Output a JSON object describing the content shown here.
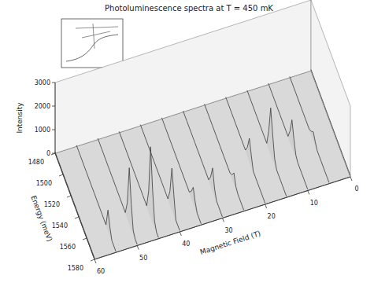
{
  "chart_data": {
    "type": "surface",
    "title": "Photoluminescence spectra at T = 450 mK",
    "xlabel": "Energy (meV)",
    "ylabel": "Magnetic Field (T)",
    "zlabel": "Intensity",
    "x": [
      1480,
      1485,
      1490,
      1495,
      1500,
      1505,
      1510,
      1515,
      1520,
      1525,
      1530,
      1535,
      1540,
      1545,
      1550,
      1555,
      1560,
      1565,
      1570,
      1575,
      1580
    ],
    "y": [
      0,
      5,
      10,
      15,
      20,
      25,
      30,
      35,
      40,
      45,
      50,
      55,
      60
    ],
    "z": [
      [
        50,
        50,
        50,
        50,
        50,
        50,
        50,
        50,
        50,
        50,
        50,
        50,
        50,
        50,
        50,
        50,
        50,
        50,
        50,
        50,
        50
      ],
      [
        50,
        50,
        50,
        50,
        50,
        50,
        50,
        50,
        50,
        50,
        50,
        200,
        400,
        200,
        50,
        50,
        50,
        50,
        50,
        50,
        50
      ],
      [
        50,
        50,
        50,
        50,
        50,
        50,
        50,
        50,
        50,
        50,
        50,
        500,
        1200,
        600,
        150,
        50,
        50,
        50,
        50,
        50,
        50
      ],
      [
        50,
        50,
        50,
        50,
        50,
        50,
        50,
        50,
        50,
        50,
        50,
        800,
        2000,
        1100,
        300,
        50,
        50,
        50,
        50,
        50,
        50
      ],
      [
        50,
        50,
        50,
        50,
        50,
        50,
        50,
        50,
        50,
        50,
        50,
        400,
        1000,
        500,
        50,
        50,
        50,
        50,
        50,
        50,
        50
      ],
      [
        50,
        50,
        50,
        50,
        50,
        50,
        50,
        50,
        50,
        50,
        50,
        50,
        50,
        50,
        200,
        500,
        150,
        50,
        50,
        50,
        50
      ],
      [
        50,
        50,
        50,
        50,
        50,
        50,
        50,
        50,
        50,
        50,
        50,
        50,
        50,
        50,
        400,
        1000,
        350,
        50,
        50,
        50,
        50
      ],
      [
        50,
        50,
        50,
        50,
        50,
        50,
        50,
        50,
        50,
        50,
        50,
        50,
        50,
        50,
        50,
        300,
        700,
        300,
        50,
        50,
        50
      ],
      [
        50,
        50,
        50,
        50,
        50,
        50,
        50,
        50,
        50,
        50,
        50,
        50,
        50,
        50,
        50,
        600,
        1800,
        900,
        50,
        50,
        50
      ],
      [
        50,
        50,
        50,
        50,
        50,
        50,
        50,
        50,
        50,
        50,
        50,
        50,
        50,
        50,
        50,
        900,
        3000,
        1400,
        300,
        50,
        50
      ],
      [
        50,
        50,
        50,
        50,
        50,
        50,
        50,
        50,
        50,
        50,
        50,
        50,
        50,
        50,
        50,
        700,
        2400,
        1100,
        200,
        50,
        50
      ],
      [
        50,
        50,
        50,
        50,
        50,
        50,
        50,
        50,
        50,
        50,
        50,
        50,
        50,
        50,
        50,
        50,
        900,
        400,
        50,
        50,
        50
      ],
      [
        50,
        50,
        50,
        50,
        50,
        50,
        50,
        50,
        50,
        50,
        50,
        50,
        50,
        50,
        50,
        50,
        50,
        50,
        50,
        50,
        50
      ]
    ],
    "xlim": [
      1480,
      1580
    ],
    "ylim": [
      0,
      60
    ],
    "zlim": [
      0,
      3000
    ],
    "xticks": [
      1480,
      1500,
      1520,
      1540,
      1560,
      1580
    ],
    "yticks": [
      0,
      10,
      20,
      30,
      40,
      50,
      60
    ],
    "zticks": [
      0,
      1000,
      2000,
      3000
    ],
    "grid": false
  }
}
